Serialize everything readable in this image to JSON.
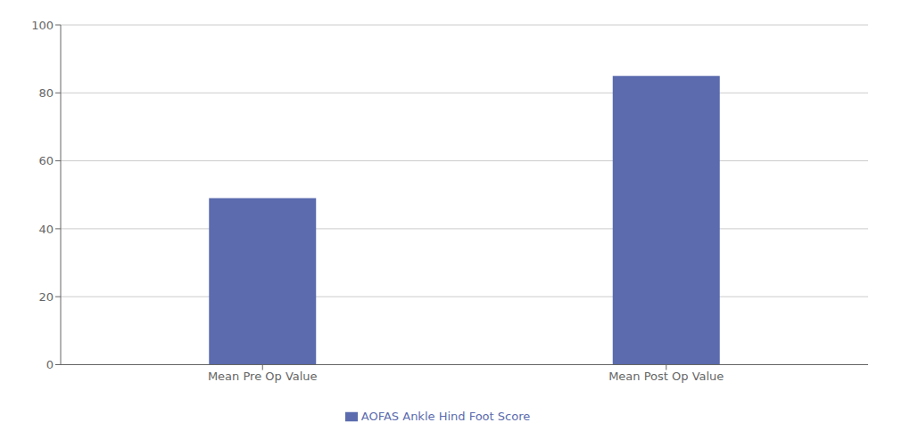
{
  "chart_data": {
    "type": "bar",
    "categories": [
      "Mean Pre Op Value",
      "Mean Post Op Value"
    ],
    "series": [
      {
        "name": "AOFAS Ankle Hind Foot Score",
        "color": "#5B6BAE",
        "values": [
          49,
          85
        ]
      }
    ],
    "ylim": [
      0,
      100
    ],
    "yticks": [
      0,
      20,
      40,
      60,
      80,
      100
    ],
    "grid": true,
    "legend": "bottom"
  }
}
